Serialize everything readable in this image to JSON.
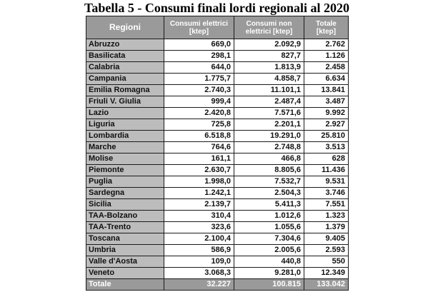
{
  "title": "Tabella 5 - Consumi finali lordi regionali al 2020",
  "table": {
    "headers": {
      "region": "Regioni",
      "elettrici_line1": "Consumi elettrici",
      "elettrici_line2": "[ktep]",
      "non_elettrici_line1": "Consumi non",
      "non_elettrici_line2": "elettrici [ktep]",
      "totale_line1": "Totale",
      "totale_line2": "[ktep]"
    },
    "rows": [
      {
        "region": "Abruzzo",
        "elettrici": "669,0",
        "non_elettrici": "2.092,9",
        "totale": "2.762"
      },
      {
        "region": "Basilicata",
        "elettrici": "298,1",
        "non_elettrici": "827,7",
        "totale": "1.126"
      },
      {
        "region": "Calabria",
        "elettrici": "644,0",
        "non_elettrici": "1.813,9",
        "totale": "2.458"
      },
      {
        "region": "Campania",
        "elettrici": "1.775,7",
        "non_elettrici": "4.858,7",
        "totale": "6.634"
      },
      {
        "region": "Emilia Romagna",
        "elettrici": "2.740,3",
        "non_elettrici": "11.101,1",
        "totale": "13.841"
      },
      {
        "region": "Friuli V. Giulia",
        "elettrici": "999,4",
        "non_elettrici": "2.487,4",
        "totale": "3.487"
      },
      {
        "region": "Lazio",
        "elettrici": "2.420,8",
        "non_elettrici": "7.571,6",
        "totale": "9.992"
      },
      {
        "region": "Liguria",
        "elettrici": "725,8",
        "non_elettrici": "2.201,1",
        "totale": "2.927"
      },
      {
        "region": "Lombardia",
        "elettrici": "6.518,8",
        "non_elettrici": "19.291,0",
        "totale": "25.810"
      },
      {
        "region": "Marche",
        "elettrici": "764,6",
        "non_elettrici": "2.748,8",
        "totale": "3.513"
      },
      {
        "region": "Molise",
        "elettrici": "161,1",
        "non_elettrici": "466,8",
        "totale": "628"
      },
      {
        "region": "Piemonte",
        "elettrici": "2.630,7",
        "non_elettrici": "8.805,6",
        "totale": "11.436"
      },
      {
        "region": "Puglia",
        "elettrici": "1.998,0",
        "non_elettrici": "7.532,7",
        "totale": "9.531"
      },
      {
        "region": "Sardegna",
        "elettrici": "1.242,1",
        "non_elettrici": "2.504,3",
        "totale": "3.746"
      },
      {
        "region": "Sicilia",
        "elettrici": "2.139,7",
        "non_elettrici": "5.411,3",
        "totale": "7.551"
      },
      {
        "region": "TAA-Bolzano",
        "elettrici": "310,4",
        "non_elettrici": "1.012,6",
        "totale": "1.323"
      },
      {
        "region": "TAA-Trento",
        "elettrici": "323,6",
        "non_elettrici": "1.055,6",
        "totale": "1.379"
      },
      {
        "region": "Toscana",
        "elettrici": "2.100,4",
        "non_elettrici": "7.304,6",
        "totale": "9.405"
      },
      {
        "region": "Umbria",
        "elettrici": "586,9",
        "non_elettrici": "2.005,6",
        "totale": "2.593"
      },
      {
        "region": "Valle d'Aosta",
        "elettrici": "109,0",
        "non_elettrici": "440,8",
        "totale": "550"
      },
      {
        "region": "Veneto",
        "elettrici": "3.068,3",
        "non_elettrici": "9.281,0",
        "totale": "12.349"
      }
    ],
    "footer": {
      "region": "Totale",
      "elettrici": "32.227",
      "non_elettrici": "100.815",
      "totale": "133.042"
    }
  },
  "colors": {
    "header_bg": "#9a9a9a",
    "region_cell_bg": "#bcbcbc",
    "value_cell_bg": "#ffffff",
    "border": "#1a1a1a"
  }
}
